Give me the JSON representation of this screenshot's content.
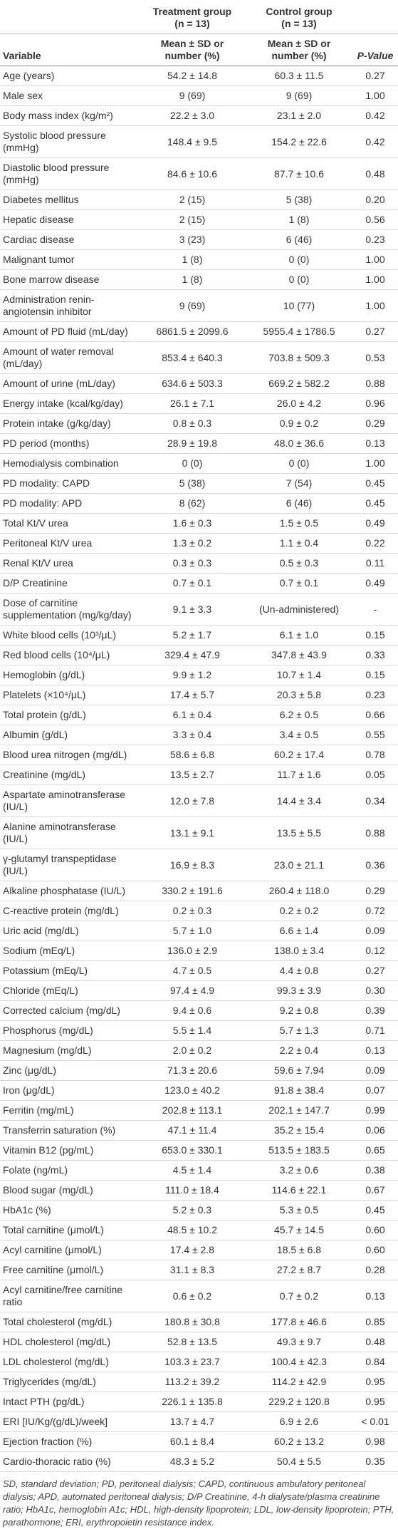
{
  "table": {
    "group_headers": [
      {
        "name": "Treatment group",
        "n": "(n = 13)"
      },
      {
        "name": "Control group",
        "n": "(n = 13)"
      }
    ],
    "columns": [
      "Variable",
      "Mean ± SD or number (%)",
      "Mean ± SD or number (%)",
      "P-Value"
    ],
    "rows": [
      [
        "Age (years)",
        "54.2 ± 14.8",
        "60.3 ± 11.5",
        "0.27"
      ],
      [
        "Male sex",
        "9 (69)",
        "9 (69)",
        "1.00"
      ],
      [
        "Body mass index (kg/m²)",
        "22.2 ± 3.0",
        "23.1 ± 2.0",
        "0.42"
      ],
      [
        "Systolic blood pressure (mmHg)",
        "148.4 ± 9.5",
        "154.2 ± 22.6",
        "0.42"
      ],
      [
        "Diastolic blood pressure (mmHg)",
        "84.6 ± 10.6",
        "87.7 ± 10.6",
        "0.48"
      ],
      [
        "Diabetes mellitus",
        "2 (15)",
        "5 (38)",
        "0.20"
      ],
      [
        "Hepatic disease",
        "2 (15)",
        "1 (8)",
        "0.56"
      ],
      [
        "Cardiac disease",
        "3 (23)",
        "6 (46)",
        "0.23"
      ],
      [
        "Malignant tumor",
        "1 (8)",
        "0 (0)",
        "1.00"
      ],
      [
        "Bone marrow disease",
        "1 (8)",
        "0 (0)",
        "1.00"
      ],
      [
        "Administration renin-angiotensin inhibitor",
        "9 (69)",
        "10 (77)",
        "1.00"
      ],
      [
        "Amount of PD fluid (mL/day)",
        "6861.5 ± 2099.6",
        "5955.4 ± 1786.5",
        "0.27"
      ],
      [
        "Amount of water removal (mL/day)",
        "853.4 ± 640.3",
        "703.8 ± 509.3",
        "0.53"
      ],
      [
        "Amount of urine (mL/day)",
        "634.6 ± 503.3",
        "669.2 ± 582.2",
        "0.88"
      ],
      [
        "Energy intake (kcal/kg/day)",
        "26.1 ± 7.1",
        "26.0 ± 4.2",
        "0.96"
      ],
      [
        "Protein intake (g/kg/day)",
        "0.8 ± 0.3",
        "0.9 ± 0.2",
        "0.29"
      ],
      [
        "PD period (months)",
        "28.9 ± 19.8",
        "48.0 ± 36.6",
        "0.13"
      ],
      [
        "Hemodialysis combination",
        "0 (0)",
        "0 (0)",
        "1.00"
      ],
      [
        "PD modality: CAPD",
        "5 (38)",
        "7 (54)",
        "0.45"
      ],
      [
        "PD modality: APD",
        "8 (62)",
        "6 (46)",
        "0.45"
      ],
      [
        "Total Kt/V urea",
        "1.6 ± 0.3",
        "1.5 ± 0.5",
        "0.49"
      ],
      [
        "Peritoneal Kt/V urea",
        "1.3 ± 0.2",
        "1.1 ± 0.4",
        "0.22"
      ],
      [
        "Renal Kt/V urea",
        "0.3 ± 0.3",
        "0.5 ± 0.3",
        "0.11"
      ],
      [
        "D/P Creatinine",
        "0.7 ± 0.1",
        "0.7 ± 0.1",
        "0.49"
      ],
      [
        "Dose of carnitine supplementation (mg/kg/day)",
        "9.1 ± 3.3",
        "(Un-administered)",
        "-"
      ],
      [
        "White blood cells (10³/μL)",
        "5.2 ± 1.7",
        "6.1 ± 1.0",
        "0.15"
      ],
      [
        "Red blood cells (10⁴/μL)",
        "329.4 ± 47.9",
        "347.8 ± 43.9",
        "0.33"
      ],
      [
        "Hemoglobin (g/dL)",
        "9.9 ± 1.2",
        "10.7 ± 1.4",
        "0.15"
      ],
      [
        "Platelets (×10⁴/μL)",
        "17.4 ± 5.7",
        "20.3 ± 5.8",
        "0.23"
      ],
      [
        "Total protein (g/dL)",
        "6.1 ± 0.4",
        "6.2 ± 0.5",
        "0.66"
      ],
      [
        "Albumin (g/dL)",
        "3.3 ± 0.4",
        "3.4 ± 0.5",
        "0.55"
      ],
      [
        "Blood urea nitrogen (mg/dL)",
        "58.6 ± 6.8",
        "60.2 ± 17.4",
        "0.78"
      ],
      [
        "Creatinine (mg/dL)",
        "13.5 ± 2.7",
        "11.7 ± 1.6",
        "0.05"
      ],
      [
        "Aspartate aminotransferase (IU/L)",
        "12.0 ± 7.8",
        "14.4 ± 3.4",
        "0.34"
      ],
      [
        "Alanine aminotransferase (IU/L)",
        "13.1 ± 9.1",
        "13.5 ± 5.5",
        "0.88"
      ],
      [
        "γ-glutamyl transpeptidase (IU/L)",
        "16.9 ± 8.3",
        "23.0 ± 21.1",
        "0.36"
      ],
      [
        "Alkaline phosphatase (IU/L)",
        "330.2 ± 191.6",
        "260.4 ± 118.0",
        "0.29"
      ],
      [
        "C-reactive protein (mg/dL)",
        "0.2 ± 0.3",
        "0.2 ± 0.2",
        "0.72"
      ],
      [
        "Uric acid (mg/dL)",
        "5.7 ± 1.0",
        "6.6 ± 1.4",
        "0.09"
      ],
      [
        "Sodium (mEq/L)",
        "136.0 ± 2.9",
        "138.0 ± 3.4",
        "0.12"
      ],
      [
        "Potassium (mEq/L)",
        "4.7 ± 0.5",
        "4.4 ± 0.8",
        "0.27"
      ],
      [
        "Chloride (mEq/L)",
        "97.4 ± 4.9",
        "99.3 ± 3.9",
        "0.30"
      ],
      [
        "Corrected calcium (mg/dL)",
        "9.4 ± 0.6",
        "9.2 ± 0.8",
        "0.39"
      ],
      [
        "Phosphorus (mg/dL)",
        "5.5 ± 1.4",
        "5.7 ± 1.3",
        "0.71"
      ],
      [
        "Magnesium (mg/dL)",
        "2.0 ± 0.2",
        "2.2 ± 0.4",
        "0.13"
      ],
      [
        "Zinc (μg/dL)",
        "71.3 ± 20.6",
        "59.6 ± 7.94",
        "0.09"
      ],
      [
        "Iron (μg/dL)",
        "123.0 ± 40.2",
        "91.8 ± 38.4",
        "0.07"
      ],
      [
        "Ferritin (mg/mL)",
        "202.8 ± 113.1",
        "202.1 ± 147.7",
        "0.99"
      ],
      [
        "Transferrin saturation (%)",
        "47.1 ± 11.4",
        "35.2 ± 15.4",
        "0.06"
      ],
      [
        "Vitamin B12 (pg/mL)",
        "653.0 ± 330.1",
        "513.5 ± 183.5",
        "0.65"
      ],
      [
        "Folate (ng/mL)",
        "4.5 ± 1.4",
        "3.2 ± 0.6",
        "0.38"
      ],
      [
        "Blood sugar (mg/dL)",
        "111.0 ± 18.4",
        "114.6 ± 22.1",
        "0.67"
      ],
      [
        "HbA1c (%)",
        "5.2 ± 0.3",
        "5.3 ± 0.5",
        "0.45"
      ],
      [
        "Total carnitine (μmol/L)",
        "48.5 ± 10.2",
        "45.7 ± 14.5",
        "0.60"
      ],
      [
        "Acyl carnitine (μmol/L)",
        "17.4 ± 2.8",
        "18.5 ± 6.8",
        "0.60"
      ],
      [
        "Free carnitine (μmol/L)",
        "31.1 ± 8.3",
        "27.2 ± 8.7",
        "0.28"
      ],
      [
        "Acyl carnitine/free carnitine ratio",
        "0.6 ± 0.2",
        "0.7 ± 0.2",
        "0.13"
      ],
      [
        "Total cholesterol (mg/dL)",
        "180.8 ± 30.8",
        "177.8 ± 46.6",
        "0.85"
      ],
      [
        "HDL cholesterol (mg/dL)",
        "52.8 ± 13.5",
        "49.3 ± 9.7",
        "0.48"
      ],
      [
        "LDL cholesterol (mg/dL)",
        "103.3 ± 23.7",
        "100.4 ± 42.3",
        "0.84"
      ],
      [
        "Triglycerides (mg/dL)",
        "113.2 ± 39.2",
        "114.2 ± 42.9",
        "0.95"
      ],
      [
        "Intact PTH (pg/dL)",
        "226.1 ± 135.8",
        "229.2 ± 120.8",
        "0.95"
      ],
      [
        "ERI [IU/Kg/(g/dL)/week]",
        "13.7 ± 4.7",
        "6.9 ± 2.6",
        "< 0.01"
      ],
      [
        "Ejection fraction (%)",
        "60.1 ± 8.4",
        "60.2 ± 13.2",
        "0.98"
      ],
      [
        "Cardio-thoracic ratio (%)",
        "48.3 ± 5.2",
        "50.4 ± 5.5",
        "0.35"
      ]
    ]
  },
  "footnote": "SD, standard deviation; PD, peritoneal dialysis; CAPD, continuous ambulatory peritoneal dialysis; APD, automated peritoneal dialysis; D/P Creatinine, 4-h dialysate/plasma creatinine ratio; HbA1c, hemoglobin A1c; HDL, high-density lipoprotein; LDL, low-density lipoprotein; PTH, parathormone; ERI, erythropoietin resistance index."
}
